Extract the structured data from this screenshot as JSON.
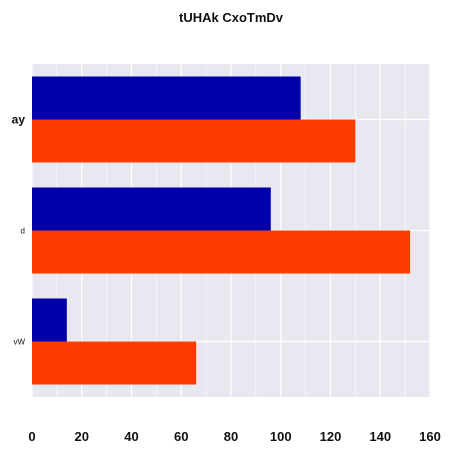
{
  "chart_data": {
    "type": "bar",
    "orientation": "horizontal",
    "title": "tUHAk CxoTmDv",
    "categories": [
      "ay",
      "d",
      "vW"
    ],
    "series": [
      {
        "values": [
          108,
          96,
          14
        ],
        "color": "#0000aa"
      },
      {
        "values": [
          130,
          152,
          66
        ],
        "color": "#ff3b00"
      }
    ],
    "xlim": [
      0,
      160
    ],
    "xticks": [
      0,
      20,
      40,
      60,
      80,
      100,
      120,
      140,
      160
    ],
    "grid": true,
    "background": "#e8e8f0"
  }
}
